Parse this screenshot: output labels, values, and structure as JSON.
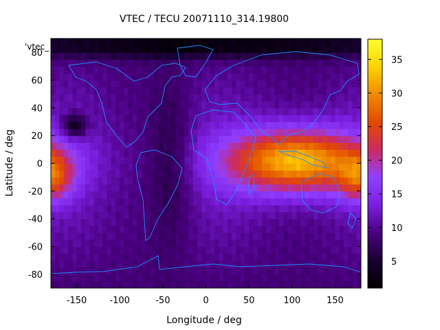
{
  "chart_data": {
    "type": "heatmap",
    "title": "VTEC / TECU 20071110_314.19800",
    "key_label": "'vtec_",
    "xlabel": "Longitude / deg",
    "ylabel": "Latitude / deg",
    "xlim": [
      -180,
      180
    ],
    "ylim": [
      -90,
      90
    ],
    "xticks": [
      "-150",
      "-100",
      "-50",
      "0",
      "50",
      "100",
      "150"
    ],
    "xtick_values": [
      -150,
      -100,
      -50,
      0,
      50,
      100,
      150
    ],
    "yticks": [
      "-80",
      "-60",
      "-40",
      "-20",
      "0",
      "20",
      "40",
      "60",
      "80"
    ],
    "ytick_values": [
      -80,
      -60,
      -40,
      -20,
      0,
      20,
      40,
      60,
      80
    ],
    "colorbar": {
      "range": [
        1,
        38
      ],
      "ticks": [
        "5",
        "10",
        "15",
        "20",
        "25",
        "30",
        "35"
      ],
      "tick_values": [
        5,
        10,
        15,
        20,
        25,
        30,
        35
      ],
      "stops": [
        "#000000",
        "#1a0033",
        "#4a0080",
        "#7b1fe0",
        "#9040ff",
        "#cc2a60",
        "#e34a00",
        "#f08a00",
        "#ffd200",
        "#ffff30"
      ]
    },
    "background_vtec": 11,
    "features": [
      {
        "name": "equatorial-anomaly-asia",
        "lon": 105,
        "lat": 2,
        "peak": 34,
        "lon_spread": 55,
        "lat_spread": 16
      },
      {
        "name": "equatorial-anomaly-pacific",
        "lon": -180,
        "lat": -10,
        "peak": 22,
        "lon_spread": 18,
        "lat_spread": 12
      },
      {
        "name": "low-pacific",
        "lon": -153,
        "lat": 27,
        "peak": 2,
        "lon_spread": 10,
        "lat_spread": 6
      },
      {
        "name": "low-arctic",
        "lon": 0,
        "lat": 85,
        "peak": 4,
        "lon_spread": 200,
        "lat_spread": 6
      },
      {
        "name": "atlantic-trough",
        "lon": -40,
        "lat": 0,
        "peak": 7,
        "lon_spread": 18,
        "lat_spread": 40
      }
    ],
    "coastline_color": "#1e90ff"
  }
}
